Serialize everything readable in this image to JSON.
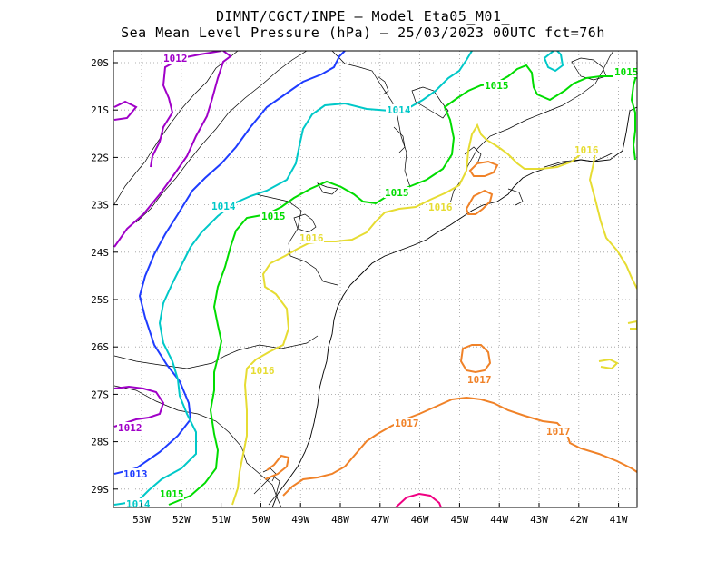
{
  "title": {
    "line1": "DIMNT/CGCT/INPE –  Model Eta05_M01_",
    "line2": "Sea Mean Level Pressure (hPa) – 25/03/2023 00UTC fct=76h"
  },
  "chart_data": {
    "type": "contour map",
    "variable": "Sea Mean Level Pressure",
    "units": "hPa",
    "x_axis": {
      "labels": [
        "53W",
        "52W",
        "51W",
        "50W",
        "49W",
        "48W",
        "47W",
        "46W",
        "45W",
        "44W",
        "43W",
        "42W",
        "41W"
      ]
    },
    "y_axis": {
      "labels": [
        "20S",
        "21S",
        "22S",
        "23S",
        "24S",
        "25S",
        "26S",
        "27S",
        "28S",
        "29S"
      ]
    },
    "grid": "dotted",
    "contours": [
      {
        "level": 1012,
        "label": "1012",
        "color": "#a000c8"
      },
      {
        "level": 1013,
        "label": "1013",
        "color": "#1e3cff"
      },
      {
        "level": 1014,
        "label": "1014",
        "color": "#00c8c8"
      },
      {
        "level": 1015,
        "label": "1015",
        "color": "#00dc00"
      },
      {
        "level": 1016,
        "label": "1016",
        "color": "#e6dc32"
      },
      {
        "level": 1017,
        "label": "1017",
        "color": "#f08228"
      },
      {
        "level": 1018,
        "label": "",
        "color": "#f00082"
      }
    ]
  }
}
